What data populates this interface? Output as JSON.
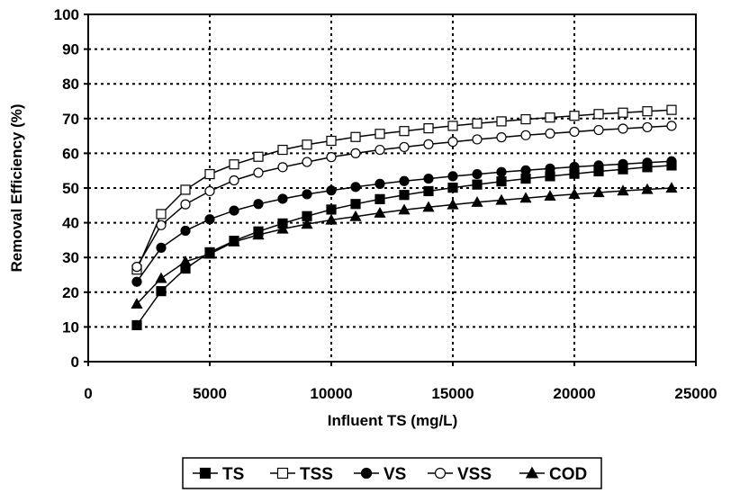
{
  "chart_data": {
    "type": "line",
    "title": "",
    "xlabel": "Influent TS (mg/L)",
    "ylabel": "Removal Efficiency (%)",
    "xlim": [
      0,
      25000
    ],
    "ylim": [
      0,
      100
    ],
    "x_ticks": [
      "0",
      "5000",
      "10000",
      "15000",
      "20000",
      "25000"
    ],
    "y_ticks": [
      "0",
      "10",
      "20",
      "30",
      "40",
      "50",
      "60",
      "70",
      "80",
      "90",
      "100"
    ],
    "grid": true,
    "legend_position": "bottom",
    "x": [
      2000,
      3000,
      4000,
      5000,
      6000,
      7000,
      8000,
      9000,
      10000,
      11000,
      12000,
      13000,
      14000,
      15000,
      16000,
      17000,
      18000,
      19000,
      20000,
      21000,
      22000,
      23000,
      24000
    ],
    "series": [
      {
        "name": "TS",
        "marker": "filled-square",
        "color": "#000000",
        "values": [
          10.5,
          20.3,
          26.8,
          31.5,
          34.8,
          37.5,
          39.8,
          41.9,
          43.8,
          45.4,
          46.8,
          48.0,
          49.1,
          50.1,
          51.0,
          51.9,
          52.7,
          53.4,
          54.1,
          54.8,
          55.4,
          56.0,
          56.5
        ]
      },
      {
        "name": "TSS",
        "marker": "open-square",
        "color": "#000000",
        "values": [
          26.5,
          42.5,
          49.5,
          54.0,
          56.8,
          59.0,
          61.0,
          62.5,
          63.6,
          64.7,
          65.6,
          66.4,
          67.2,
          67.9,
          68.6,
          69.2,
          69.8,
          70.3,
          70.8,
          71.3,
          71.7,
          72.1,
          72.5
        ]
      },
      {
        "name": "VS",
        "marker": "filled-circle",
        "color": "#000000",
        "values": [
          23.0,
          32.8,
          37.7,
          41.0,
          43.5,
          45.4,
          46.9,
          48.2,
          49.3,
          50.3,
          51.2,
          52.0,
          52.7,
          53.4,
          54.0,
          54.6,
          55.1,
          55.6,
          56.1,
          56.5,
          56.9,
          57.3,
          57.7
        ]
      },
      {
        "name": "VSS",
        "marker": "open-circle",
        "color": "#000000",
        "values": [
          27.3,
          39.3,
          45.3,
          49.1,
          52.2,
          54.4,
          56.0,
          57.5,
          58.9,
          60.0,
          61.0,
          61.8,
          62.6,
          63.3,
          64.0,
          64.6,
          65.2,
          65.7,
          66.2,
          66.7,
          67.1,
          67.5,
          67.9
        ]
      },
      {
        "name": "COD",
        "marker": "filled-triangle",
        "color": "#000000",
        "values": [
          16.6,
          24.0,
          28.8,
          31.0,
          34.5,
          36.5,
          38.2,
          39.6,
          40.8,
          41.8,
          42.8,
          43.7,
          44.5,
          45.2,
          45.9,
          46.5,
          47.1,
          47.7,
          48.2,
          48.7,
          49.2,
          49.6,
          50.0
        ]
      }
    ]
  }
}
